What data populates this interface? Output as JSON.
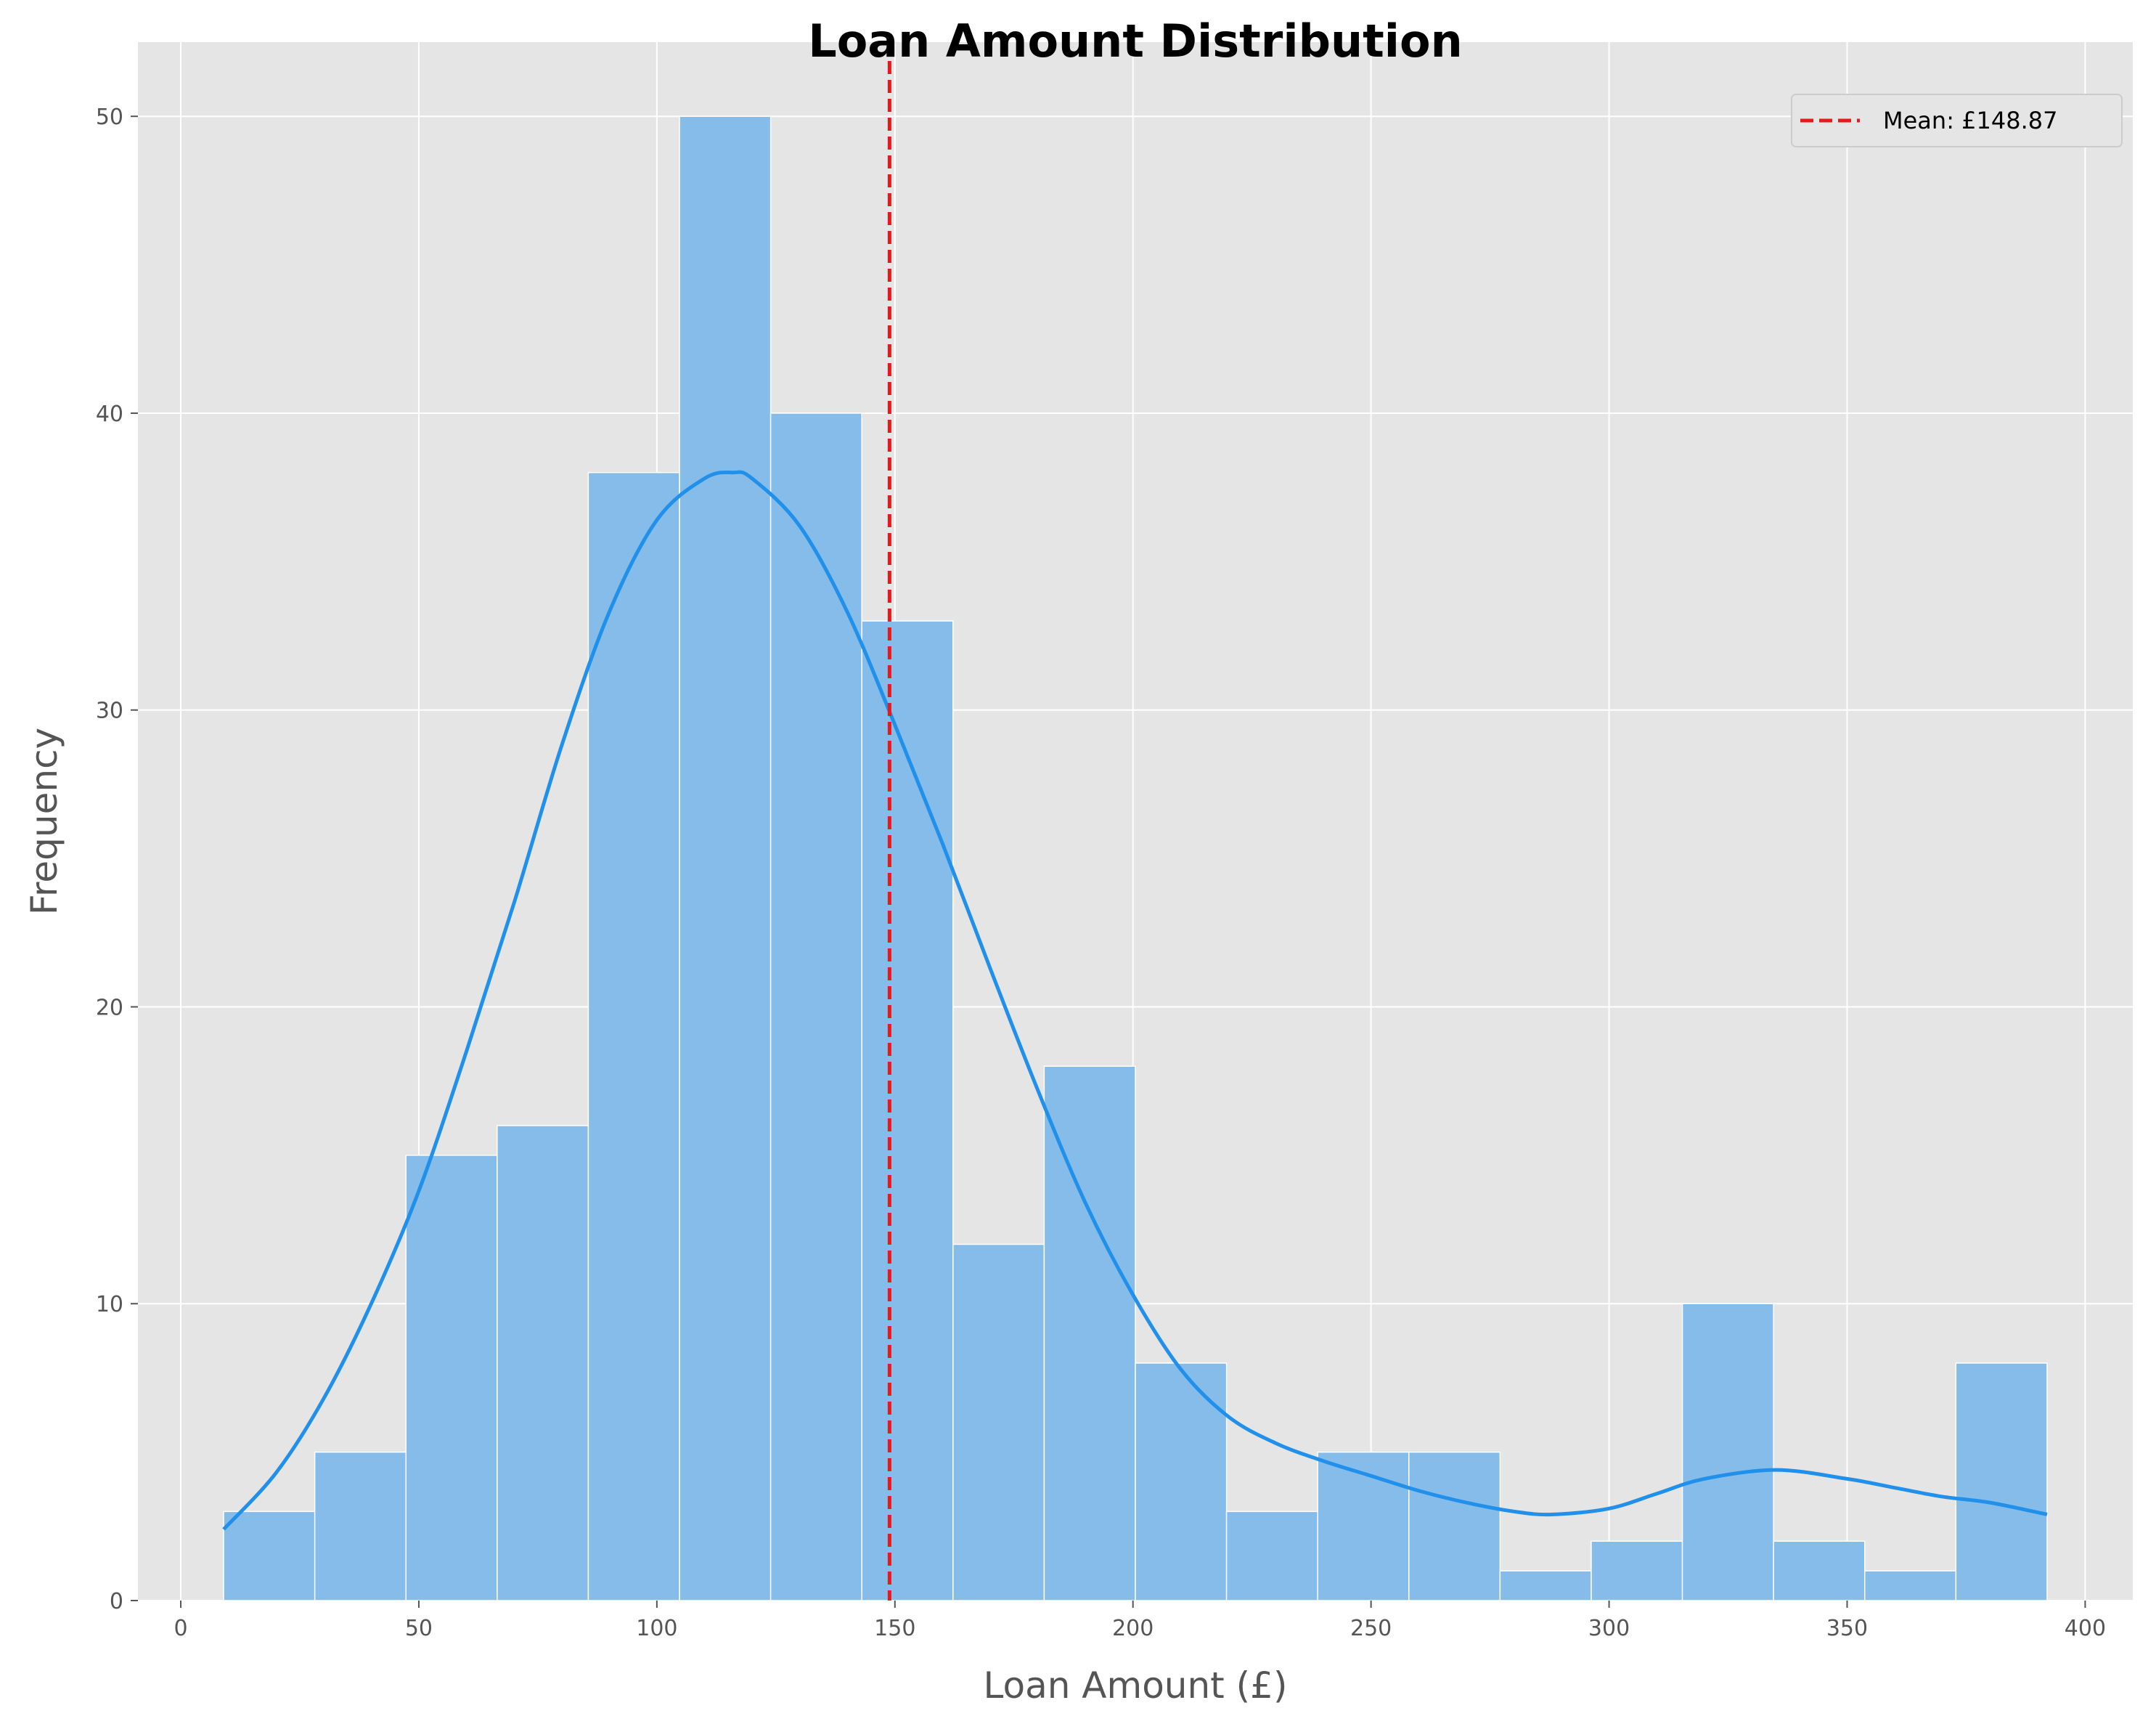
{
  "chart_data": {
    "type": "histogram",
    "title": "Loan Amount Distribution",
    "xlabel": "Loan Amount (£)",
    "ylabel": "Frequency",
    "xlim": [
      -9,
      410
    ],
    "ylim": [
      0,
      52.5
    ],
    "xticks": [
      0,
      50,
      100,
      150,
      200,
      250,
      300,
      350,
      400
    ],
    "yticks": [
      0,
      10,
      20,
      30,
      40,
      50
    ],
    "grid": true,
    "legend_placement": "top-right",
    "bins": [
      {
        "start": 9.0,
        "end": 28.15,
        "count": 3
      },
      {
        "start": 28.15,
        "end": 47.3,
        "count": 5
      },
      {
        "start": 47.3,
        "end": 66.45,
        "count": 15
      },
      {
        "start": 66.45,
        "end": 85.6,
        "count": 16
      },
      {
        "start": 85.6,
        "end": 104.75,
        "count": 38
      },
      {
        "start": 104.75,
        "end": 123.9,
        "count": 50
      },
      {
        "start": 123.9,
        "end": 143.05,
        "count": 40
      },
      {
        "start": 143.05,
        "end": 162.2,
        "count": 33
      },
      {
        "start": 162.2,
        "end": 181.35,
        "count": 12
      },
      {
        "start": 181.35,
        "end": 200.5,
        "count": 18
      },
      {
        "start": 200.5,
        "end": 219.65,
        "count": 8
      },
      {
        "start": 219.65,
        "end": 238.8,
        "count": 3
      },
      {
        "start": 238.8,
        "end": 257.95,
        "count": 5
      },
      {
        "start": 257.95,
        "end": 277.1,
        "count": 5
      },
      {
        "start": 277.1,
        "end": 296.25,
        "count": 1
      },
      {
        "start": 296.25,
        "end": 315.4,
        "count": 2
      },
      {
        "start": 315.4,
        "end": 334.55,
        "count": 10
      },
      {
        "start": 334.55,
        "end": 353.7,
        "count": 2
      },
      {
        "start": 353.7,
        "end": 372.85,
        "count": 1
      },
      {
        "start": 372.85,
        "end": 392.0,
        "count": 8
      }
    ],
    "kde": {
      "x": [
        9,
        20,
        30,
        40,
        50,
        60,
        70,
        80,
        90,
        100,
        110,
        116,
        120,
        130,
        140,
        150,
        160,
        170,
        180,
        190,
        200,
        210,
        220,
        230,
        240,
        250,
        260,
        270,
        280,
        288,
        300,
        310,
        320,
        335,
        350,
        360,
        370,
        380,
        392
      ],
      "y": [
        2.4,
        4.3,
        6.8,
        10.0,
        13.8,
        18.5,
        23.5,
        28.8,
        33.3,
        36.4,
        37.8,
        38.0,
        37.8,
        36.2,
        33.3,
        29.5,
        25.5,
        21.3,
        17.2,
        13.4,
        10.3,
        7.8,
        6.2,
        5.3,
        4.7,
        4.2,
        3.7,
        3.3,
        3.0,
        2.9,
        3.1,
        3.6,
        4.1,
        4.4,
        4.1,
        3.8,
        3.5,
        3.3,
        2.9
      ]
    },
    "mean_line": {
      "value": 148.87,
      "label": "Mean: £148.87"
    },
    "colors": {
      "bar_fill": "#85bcea",
      "bar_edge": "#ffffff",
      "kde": "#2190ea",
      "mean": "#e8191b",
      "plot_bg": "#e5e5e5",
      "grid": "#ffffff"
    }
  }
}
